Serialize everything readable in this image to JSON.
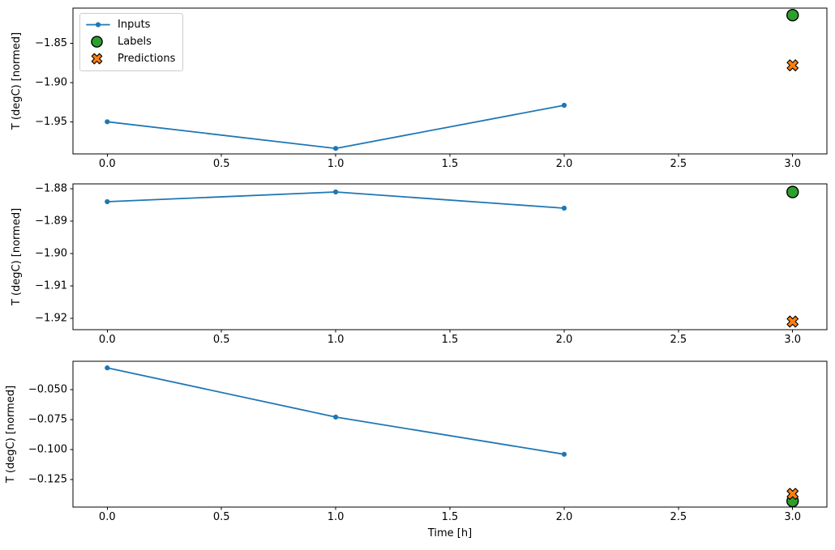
{
  "figure": {
    "xlabel": "Time [h]",
    "ylabel": "T (degC) [normed]",
    "background": "#ffffff",
    "axis_color": "#000000",
    "text_color": "#000000"
  },
  "legend": {
    "position": "upper-left",
    "items": [
      {
        "label": "Inputs",
        "style": "line-dot",
        "color": "#1f77b4",
        "edge": "#1f77b4"
      },
      {
        "label": "Labels",
        "style": "circle",
        "color": "#2ca02c",
        "edge": "#000000"
      },
      {
        "label": "Predictions",
        "style": "x",
        "color": "#ff7f0e",
        "edge": "#000000"
      }
    ]
  },
  "chart_data": [
    {
      "type": "line",
      "subplot": 1,
      "ylabel": "T (degC) [normed]",
      "xlim": [
        -0.15,
        3.15
      ],
      "ylim": [
        -1.991,
        -1.805
      ],
      "grid": false,
      "xticks": [
        0.0,
        0.5,
        1.0,
        1.5,
        2.0,
        2.5,
        3.0
      ],
      "xtick_labels": [
        "0.0",
        "0.5",
        "1.0",
        "1.5",
        "2.0",
        "2.5",
        "3.0"
      ],
      "yticks": [
        -1.85,
        -1.9,
        -1.95
      ],
      "ytick_labels": [
        "−1.85",
        "−1.90",
        "−1.95"
      ],
      "series": [
        {
          "name": "Inputs",
          "style": "line-dot",
          "color": "#1f77b4",
          "x": [
            0,
            1,
            2
          ],
          "y": [
            -1.95,
            -1.984,
            -1.929
          ]
        },
        {
          "name": "Labels",
          "style": "circle",
          "color": "#2ca02c",
          "x": [
            3
          ],
          "y": [
            -1.814
          ]
        },
        {
          "name": "Predictions",
          "style": "x",
          "color": "#ff7f0e",
          "x": [
            3
          ],
          "y": [
            -1.878
          ]
        }
      ]
    },
    {
      "type": "line",
      "subplot": 2,
      "ylabel": "T (degC) [normed]",
      "xlim": [
        -0.15,
        3.15
      ],
      "ylim": [
        -1.9235,
        -1.8785
      ],
      "grid": false,
      "xticks": [
        0.0,
        0.5,
        1.0,
        1.5,
        2.0,
        2.5,
        3.0
      ],
      "xtick_labels": [
        "0.0",
        "0.5",
        "1.0",
        "1.5",
        "2.0",
        "2.5",
        "3.0"
      ],
      "yticks": [
        -1.88,
        -1.89,
        -1.9,
        -1.91,
        -1.92
      ],
      "ytick_labels": [
        "−1.88",
        "−1.89",
        "−1.90",
        "−1.91",
        "−1.92"
      ],
      "series": [
        {
          "name": "Inputs",
          "style": "line-dot",
          "color": "#1f77b4",
          "x": [
            0,
            1,
            2
          ],
          "y": [
            -1.884,
            -1.881,
            -1.886
          ]
        },
        {
          "name": "Labels",
          "style": "circle",
          "color": "#2ca02c",
          "x": [
            3
          ],
          "y": [
            -1.881
          ]
        },
        {
          "name": "Predictions",
          "style": "x",
          "color": "#ff7f0e",
          "x": [
            3
          ],
          "y": [
            -1.921
          ]
        }
      ]
    },
    {
      "type": "line",
      "subplot": 3,
      "ylabel": "T (degC) [normed]",
      "xlabel": "Time [h]",
      "xlim": [
        -0.15,
        3.15
      ],
      "ylim": [
        -0.148,
        -0.0265
      ],
      "grid": false,
      "xticks": [
        0.0,
        0.5,
        1.0,
        1.5,
        2.0,
        2.5,
        3.0
      ],
      "xtick_labels": [
        "0.0",
        "0.5",
        "1.0",
        "1.5",
        "2.0",
        "2.5",
        "3.0"
      ],
      "yticks": [
        -0.05,
        -0.075,
        -0.1,
        -0.125
      ],
      "ytick_labels": [
        "−0.050",
        "−0.075",
        "−0.100",
        "−0.125"
      ],
      "series": [
        {
          "name": "Inputs",
          "style": "line-dot",
          "color": "#1f77b4",
          "x": [
            0,
            1,
            2
          ],
          "y": [
            -0.032,
            -0.073,
            -0.104
          ]
        },
        {
          "name": "Labels",
          "style": "circle",
          "color": "#2ca02c",
          "x": [
            3
          ],
          "y": [
            -0.143
          ]
        },
        {
          "name": "Predictions",
          "style": "x",
          "color": "#ff7f0e",
          "x": [
            3
          ],
          "y": [
            -0.137
          ]
        }
      ]
    }
  ]
}
